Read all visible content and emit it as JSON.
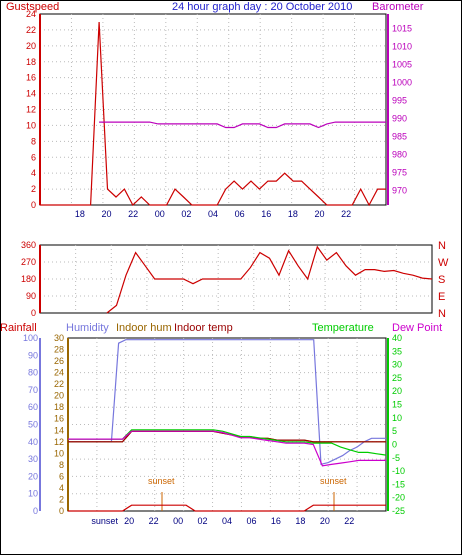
{
  "top_panel": {
    "title": "24 hour graph day : 20 October 2010",
    "left_label": "Gustspeed",
    "right_label": "Barometer",
    "colors": {
      "title": "#2222cc",
      "left": "#cc0000",
      "right": "#bb00bb"
    }
  },
  "direction_panel": {
    "compass": [
      "N",
      "W",
      "S",
      "E",
      "N"
    ],
    "colors": {
      "axis": "#cc0000",
      "compass": "#cc0000"
    }
  },
  "bottom_panel": {
    "labels": {
      "rainfall": "Rainfall",
      "humidity": "Humidity",
      "indoor_hum": "Indoor hum",
      "indoor_temp": "Indoor temp",
      "temperature": "Temperature",
      "dew_point": "Dew Point"
    },
    "colors": {
      "rainfall": "#cc0000",
      "humidity": "#7777dd",
      "indoor_hum": "#996600",
      "indoor_temp": "#990000",
      "temperature": "#00cc00",
      "dew_point": "#cc00cc"
    },
    "annotations": [
      "sunset",
      "sunset"
    ],
    "x_tick_labels": [
      "sunset",
      "20",
      "22",
      "00",
      "02",
      "04",
      "06",
      "16",
      "18",
      "20",
      "22"
    ]
  },
  "chart_data": [
    {
      "type": "line",
      "title": "24 hour graph day : 20 October 2010",
      "x_ticks": [
        "18",
        "20",
        "22",
        "00",
        "02",
        "04",
        "06",
        "16",
        "18",
        "20",
        "22"
      ],
      "y_left": {
        "label": "Gustspeed",
        "ticks": [
          0,
          2,
          4,
          6,
          8,
          10,
          12,
          14,
          16,
          18,
          20,
          22,
          24
        ],
        "ylim": [
          0,
          24
        ]
      },
      "y_right": {
        "label": "Barometer",
        "ticks": [
          970,
          975,
          980,
          985,
          990,
          995,
          1000,
          1005,
          1010,
          1015
        ],
        "ylim": [
          966,
          1019
        ]
      },
      "series": [
        {
          "name": "Gustspeed",
          "color": "#cc0000",
          "values": [
            0,
            0,
            0,
            0,
            0,
            0,
            0,
            23,
            2,
            1,
            2,
            0,
            1,
            0,
            0,
            0,
            2,
            1,
            0,
            0,
            0,
            0,
            2,
            3,
            2,
            3,
            2,
            3,
            3,
            4,
            3,
            3,
            2,
            1,
            0,
            0,
            0,
            0,
            2,
            0,
            2,
            2
          ]
        },
        {
          "name": "Barometer",
          "color": "#bb00bb",
          "values": [
            null,
            null,
            null,
            null,
            null,
            null,
            null,
            989,
            989,
            989,
            989,
            989,
            989,
            989,
            988.5,
            988.5,
            988.5,
            988.5,
            988.5,
            988.5,
            988.5,
            988.5,
            987.5,
            987.5,
            988.5,
            988.5,
            988.5,
            987.5,
            987.5,
            988.5,
            988.5,
            988.5,
            988.5,
            987.5,
            988.5,
            989,
            989,
            989,
            989,
            989,
            989,
            989
          ]
        }
      ]
    },
    {
      "type": "scatter",
      "y": {
        "ticks": [
          0,
          90,
          180,
          270,
          360
        ],
        "ylim": [
          0,
          360
        ]
      },
      "compass_labels": [
        "N",
        "W",
        "S",
        "E",
        "N"
      ],
      "series": [
        {
          "name": "Wind direction",
          "color": "#cc0000",
          "values": [
            null,
            null,
            null,
            null,
            null,
            null,
            null,
            0,
            40,
            200,
            320,
            250,
            180,
            180,
            180,
            180,
            155,
            180,
            180,
            180,
            180,
            180,
            240,
            320,
            290,
            200,
            330,
            250,
            180,
            350,
            280,
            320,
            250,
            200,
            230,
            230,
            220,
            225,
            210,
            200,
            185,
            180
          ]
        }
      ]
    },
    {
      "type": "line",
      "x_ticks": [
        "sunset",
        "20",
        "22",
        "00",
        "02",
        "04",
        "06",
        "16",
        "18",
        "20",
        "22"
      ],
      "annotations": [
        "sunset",
        "sunset"
      ],
      "y_left": {
        "label": "Rainfall",
        "ticks": [
          0,
          10,
          20,
          30,
          40,
          50,
          60,
          70,
          80,
          90,
          100
        ],
        "ylim": [
          0,
          100
        ]
      },
      "y_left2": {
        "ticks": [
          0,
          2,
          4,
          6,
          8,
          10,
          12,
          14,
          16,
          18,
          20,
          22,
          24,
          26,
          28,
          30
        ],
        "ylim": [
          0,
          30
        ]
      },
      "y_right": {
        "label": "Temperature",
        "ticks": [
          -25,
          -20,
          -15,
          -10,
          -5,
          0,
          5,
          10,
          15,
          20,
          25,
          30,
          35,
          40
        ],
        "ylim": [
          -25,
          40
        ]
      },
      "series": [
        {
          "name": "Humidity",
          "color": "#7777dd",
          "values": [
            40,
            40,
            40,
            40,
            40,
            40,
            40,
            97,
            99,
            99,
            99,
            99,
            99,
            99,
            99,
            99,
            99,
            99,
            99,
            99,
            99,
            99,
            99,
            99,
            99,
            99,
            99,
            99,
            99,
            99,
            99,
            99,
            99,
            99,
            99,
            27,
            28,
            30,
            32,
            35,
            37,
            40,
            42,
            42,
            42
          ]
        },
        {
          "name": "Indoor hum",
          "color": "#996600",
          "values": [
            40,
            40,
            40,
            40,
            40,
            40,
            40,
            46,
            46,
            46,
            46,
            46,
            46,
            46,
            46,
            46,
            46,
            45,
            44,
            43,
            43,
            42,
            42,
            41,
            41,
            41,
            41,
            40,
            40,
            40,
            40,
            40,
            40,
            40,
            40,
            40
          ]
        },
        {
          "name": "Indoor temp",
          "color": "#990000",
          "values": [
            40,
            40,
            40,
            40,
            40,
            40,
            40,
            46,
            46,
            46,
            46,
            46,
            46,
            46,
            46,
            46,
            46,
            45,
            44,
            43,
            43,
            42,
            42,
            41,
            41,
            41,
            41,
            40,
            40,
            40,
            40,
            40,
            40,
            40,
            40,
            40
          ]
        },
        {
          "name": "Temperature",
          "color": "#00cc00",
          "values": [
            2,
            2,
            2,
            2,
            2,
            2,
            2,
            5.5,
            5.5,
            5.5,
            5.5,
            5.5,
            5.5,
            5.5,
            5.5,
            5.5,
            5.5,
            5,
            4,
            3,
            3,
            2.5,
            2,
            1.5,
            1,
            1,
            1,
            0.5,
            0.5,
            0.5,
            -1,
            -2,
            -3,
            -3,
            -3.5,
            -4
          ]
        },
        {
          "name": "Dew Point",
          "color": "#cc00cc",
          "values": [
            2,
            2,
            2,
            2,
            2,
            2,
            2,
            5,
            5,
            5,
            5,
            5,
            5,
            5,
            5,
            5,
            5,
            4.5,
            3.5,
            2.5,
            2.5,
            2,
            1.5,
            1,
            0.5,
            0.5,
            0.5,
            0,
            -8,
            -7.5,
            -7,
            -6.5,
            -6,
            -6,
            -6,
            -6
          ]
        },
        {
          "name": "Rainfall",
          "color": "#cc0000",
          "values": [
            0,
            0,
            0,
            0,
            0,
            0,
            0,
            1,
            1,
            1,
            1,
            1,
            1,
            1,
            0,
            0,
            0,
            0,
            0,
            0,
            0,
            0,
            0,
            0,
            0,
            0,
            0,
            1,
            1,
            1,
            1,
            1,
            1,
            1,
            1,
            1
          ]
        }
      ]
    }
  ]
}
